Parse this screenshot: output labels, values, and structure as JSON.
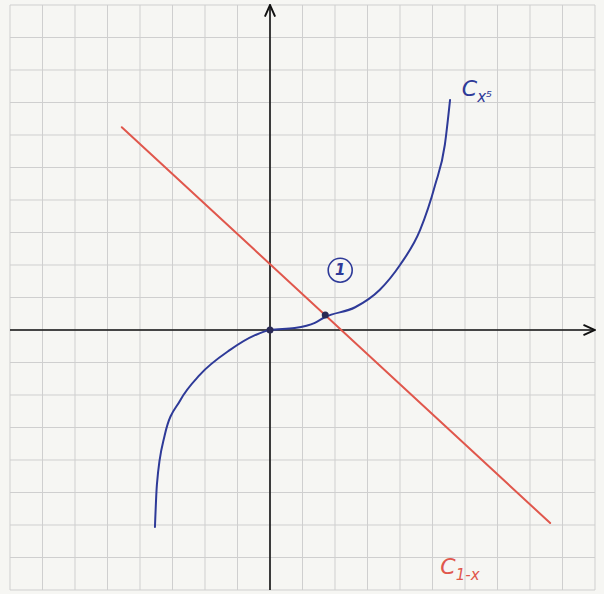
{
  "chart_data": {
    "type": "line",
    "xlim": [
      -4,
      5
    ],
    "ylim": [
      -4,
      5
    ],
    "xticks": [
      -4,
      -3.5,
      -3,
      -2.5,
      -2,
      -1.5,
      -1,
      -0.5,
      0,
      0.5,
      1,
      1.5,
      2,
      2.5,
      3,
      3.5,
      4,
      4.5,
      5
    ],
    "yticks": [
      -4,
      -3.5,
      -3,
      -2.5,
      -2,
      -1.5,
      -1,
      -0.5,
      0,
      0.5,
      1,
      1.5,
      2,
      2.5,
      3,
      3.5,
      4,
      4.5,
      5
    ],
    "grid": true,
    "tick_labels": false,
    "series": [
      {
        "type": "line",
        "color": "#2e3a98",
        "x": [
          -1.77,
          -1.74,
          -1.62,
          -1.38,
          -1.08,
          -0.62,
          -0.23,
          0,
          0.38,
          0.69,
          0.85,
          1.31,
          1.69,
          2.0,
          2.31,
          2.54,
          2.69,
          2.77
        ],
        "values": [
          -3.03,
          -2.38,
          -1.62,
          -1.08,
          -0.69,
          -0.31,
          -0.08,
          0,
          0.03,
          0.11,
          0.2,
          0.35,
          0.62,
          1.0,
          1.54,
          2.23,
          2.85,
          3.54
        ]
      },
      {
        "type": "line",
        "color": "#e0574c",
        "x": [
          -2.28,
          4.31
        ],
        "values": [
          3.12,
          -2.97
        ]
      },
      {
        "type": "scatter",
        "marker": "circle",
        "color": "#2a2a55",
        "x": [
          0,
          0.85
        ],
        "values": [
          0,
          0.23
        ]
      }
    ],
    "annotations": [
      {
        "text": "C",
        "subscript": "x⁵",
        "x": 2.95,
        "y": 3.6,
        "color": "#2e3a98"
      },
      {
        "text": "C",
        "subscript": "1-x",
        "x": 2.62,
        "y": -3.75,
        "color": "#e0574c"
      },
      {
        "text": "1",
        "marker": "circle",
        "x": 1.08,
        "y": 0.92,
        "color": "#2e3a98"
      }
    ]
  }
}
